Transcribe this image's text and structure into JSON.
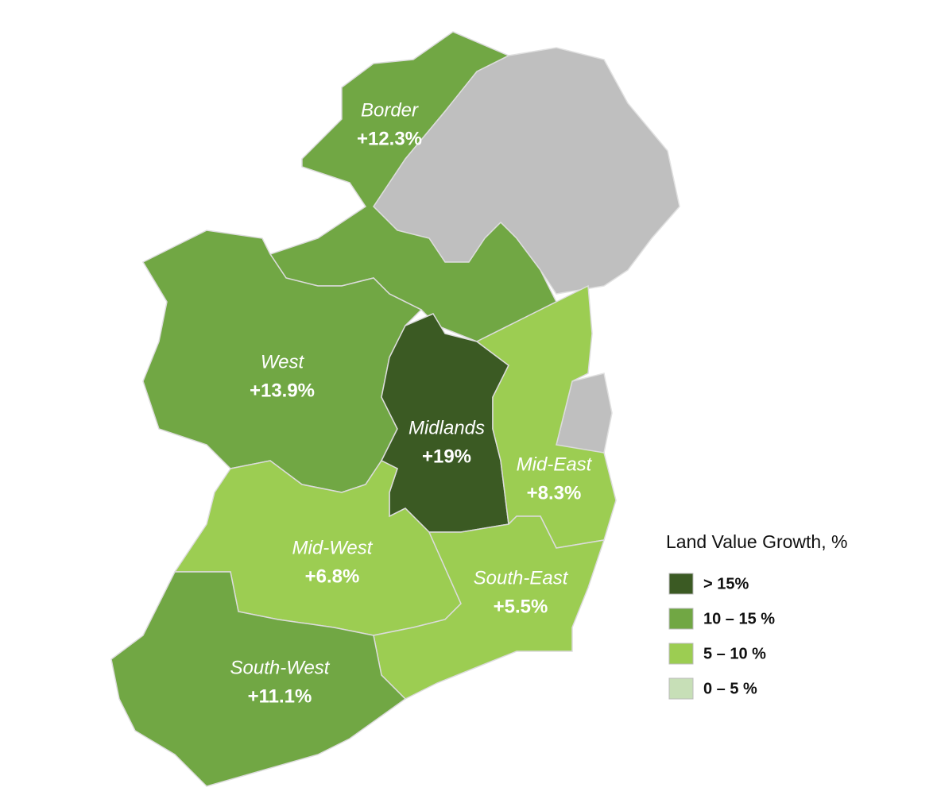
{
  "map": {
    "regions": [
      {
        "name": "Border",
        "value": 12.3,
        "value_label": "+12.3%"
      },
      {
        "name": "West",
        "value": 13.9,
        "value_label": "+13.9%"
      },
      {
        "name": "Midlands",
        "value": 19,
        "value_label": "+19%"
      },
      {
        "name": "Mid-East",
        "value": 8.3,
        "value_label": "+8.3%"
      },
      {
        "name": "Mid-West",
        "value": 6.8,
        "value_label": "+6.8%"
      },
      {
        "name": "South-East",
        "value": 5.5,
        "value_label": "+5.5%"
      },
      {
        "name": "South-West",
        "value": 11.1,
        "value_label": "+11.1%"
      }
    ],
    "no_data_color": "#bfbfbf",
    "legend": {
      "title": "Land Value Growth, %",
      "items": [
        {
          "label": "> 15%",
          "min": 15,
          "color": "#3b5a23"
        },
        {
          "label": "10 – 15 %",
          "min": 10,
          "max": 15,
          "color": "#71a744"
        },
        {
          "label": "5 – 10 %",
          "min": 5,
          "max": 10,
          "color": "#9ccd52"
        },
        {
          "label": "0 – 5 %",
          "min": 0,
          "max": 5,
          "color": "#c7dfb7"
        }
      ]
    }
  }
}
